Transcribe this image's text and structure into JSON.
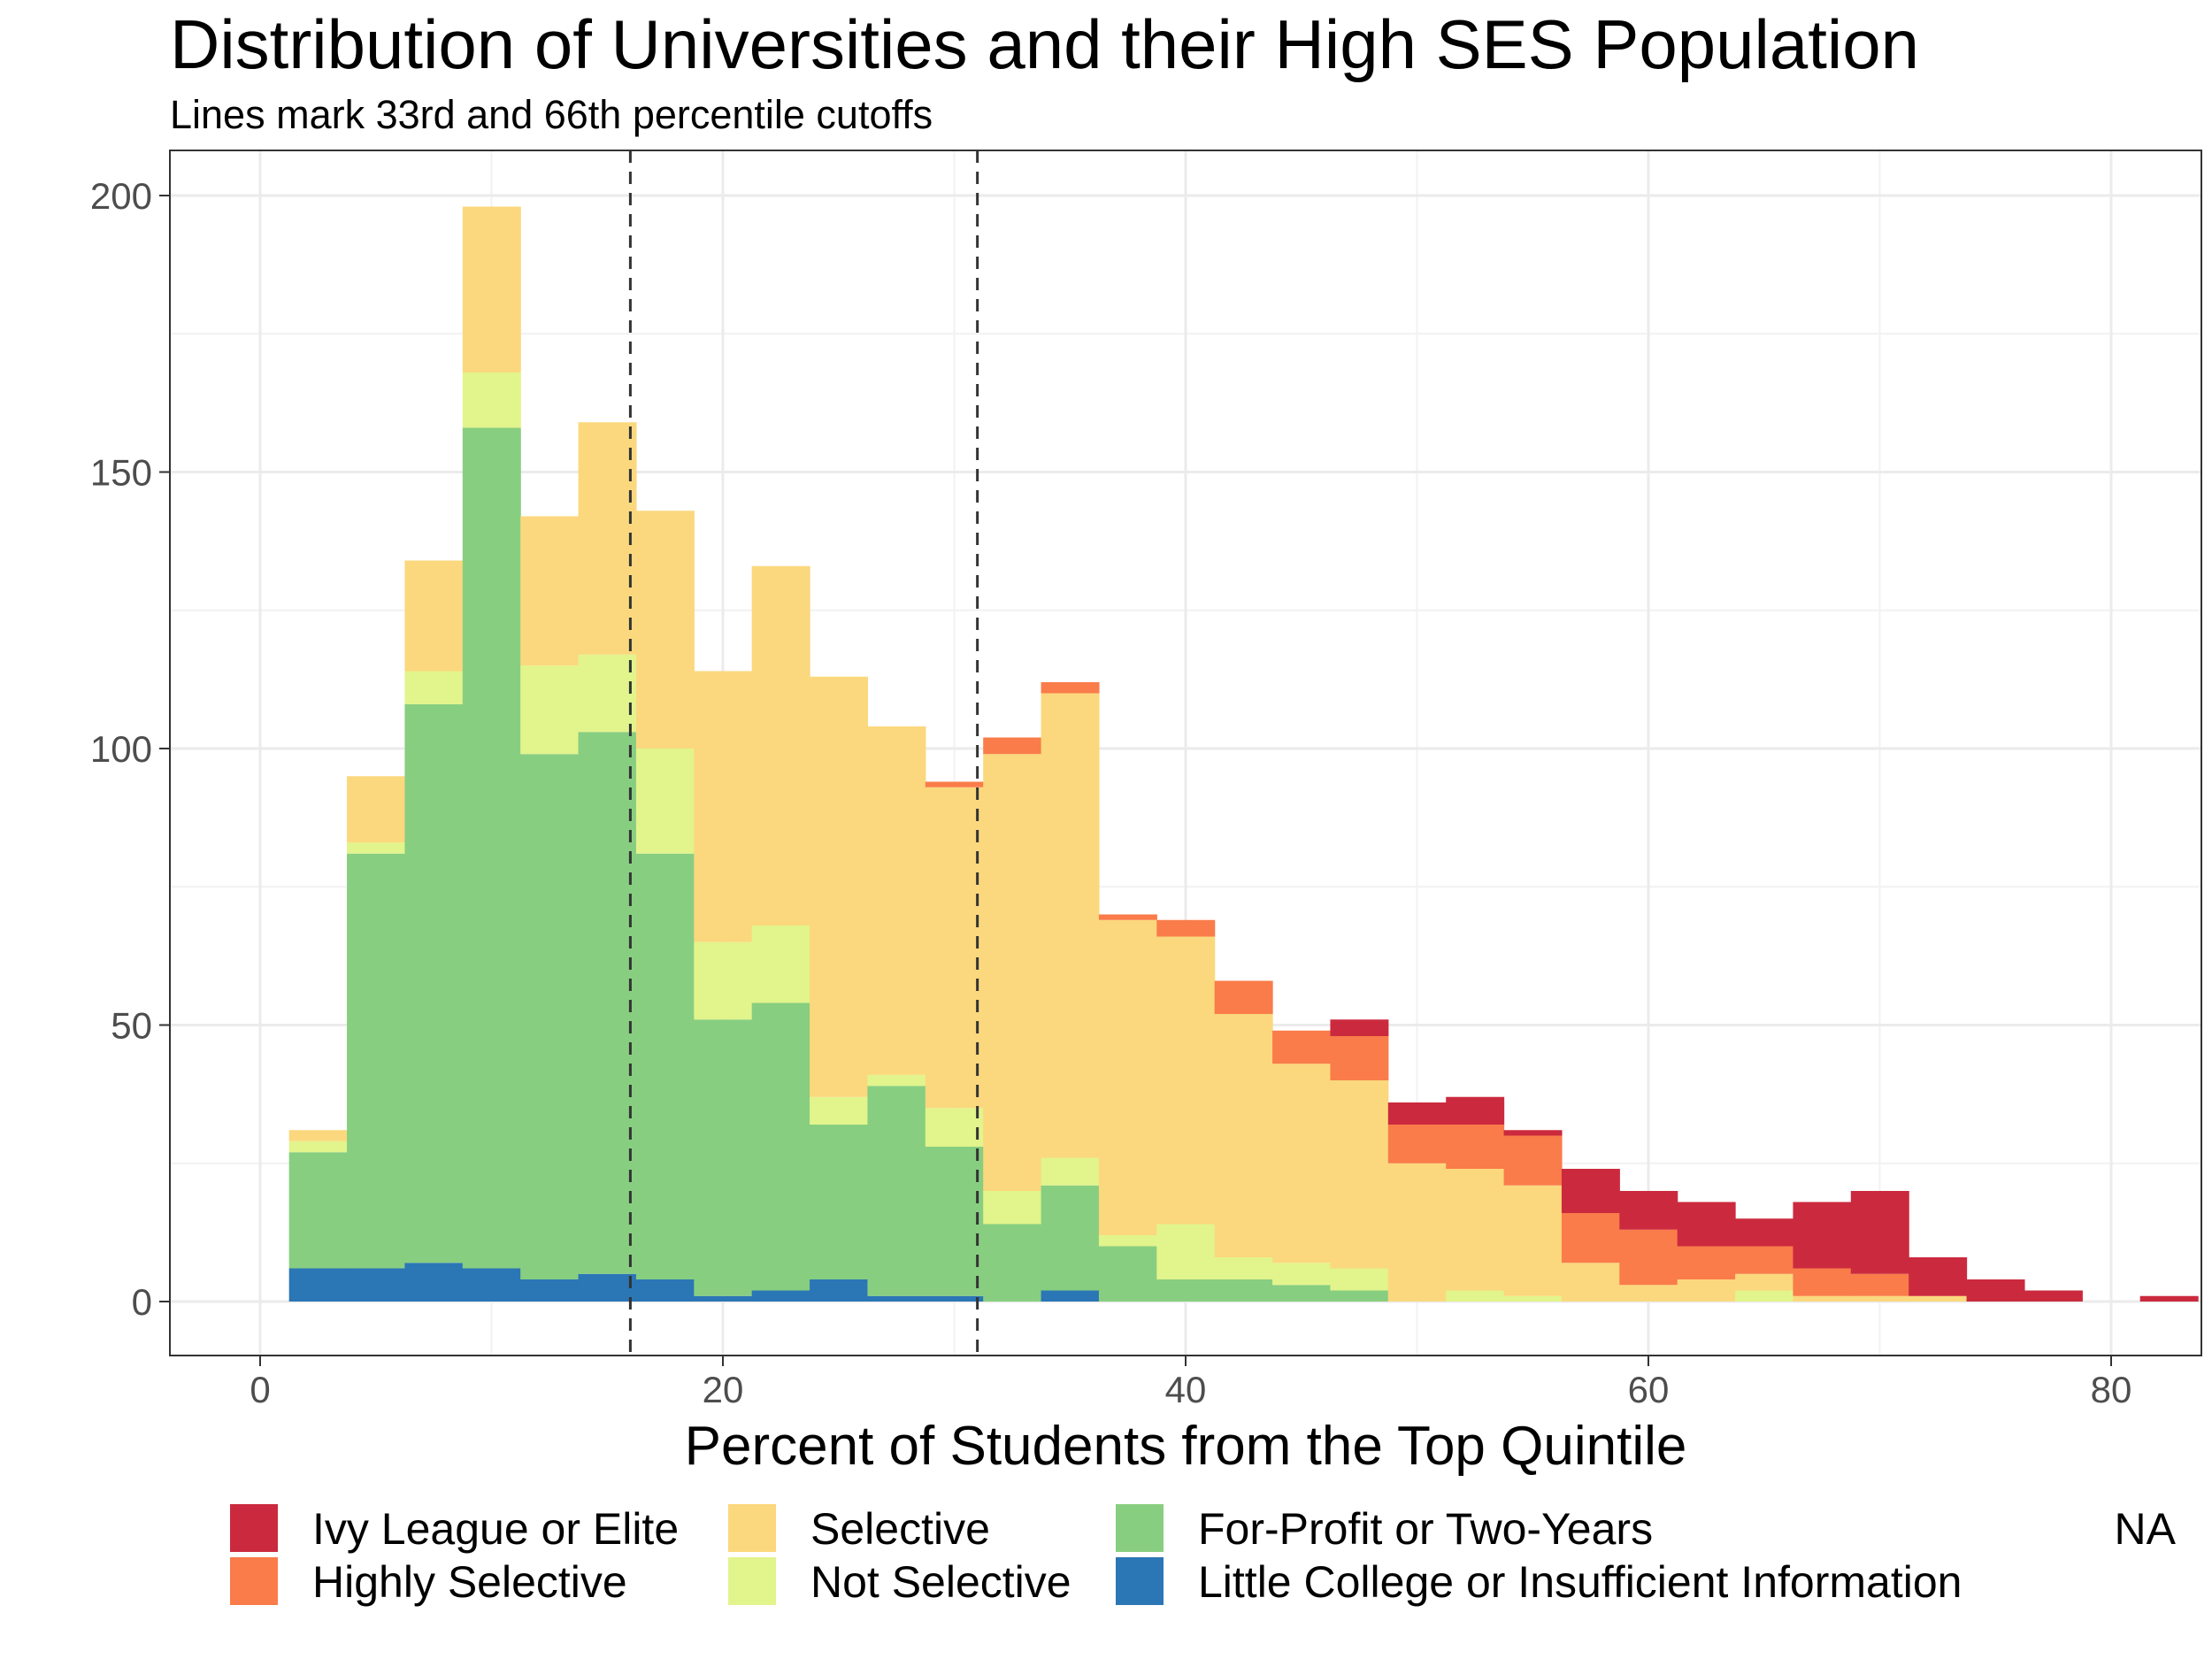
{
  "chart_data": {
    "type": "bar",
    "title": "Distribution of Universities and their High SES Population",
    "subtitle": "Lines mark 33rd and 66th percentile cutoffs",
    "xlabel": "Percent of Students from the Top Quintile",
    "ylabel": "",
    "xlim": [
      -5,
      105
    ],
    "ylim": [
      -10,
      210
    ],
    "x_ticks": [
      0,
      20,
      40,
      60,
      80,
      100
    ],
    "y_ticks": [
      0,
      50,
      100,
      150,
      200
    ],
    "grid": true,
    "stacked": true,
    "bin_width": 2.5,
    "bin_centers": [
      2.5,
      5,
      7.5,
      10,
      12.5,
      15,
      17.5,
      20,
      22.5,
      25,
      27.5,
      30,
      32.5,
      35,
      37.5,
      40,
      42.5,
      45,
      47.5,
      50,
      52.5,
      55,
      57.5,
      60,
      62.5,
      65,
      67.5,
      70,
      72.5,
      75,
      77.5,
      80,
      82.5
    ],
    "cutoffs": [
      16,
      31
    ],
    "series": [
      {
        "name": "Little College or Insufficient Information",
        "color": "#2B76B5",
        "values": [
          6,
          6,
          7,
          6,
          4,
          5,
          4,
          1,
          2,
          4,
          1,
          1,
          0,
          2,
          0,
          0,
          0,
          0,
          0,
          0,
          0,
          0,
          0,
          0,
          0,
          0,
          0,
          0,
          0,
          0,
          0,
          0,
          0
        ]
      },
      {
        "name": "For-Profit or Two-Years",
        "color": "#88CE80",
        "values": [
          21,
          75,
          101,
          152,
          95,
          98,
          77,
          50,
          52,
          28,
          38,
          27,
          14,
          19,
          10,
          4,
          4,
          3,
          2,
          0,
          0,
          0,
          0,
          0,
          0,
          0,
          0,
          0,
          0,
          0,
          0,
          0,
          0
        ]
      },
      {
        "name": "Not Selective",
        "color": "#E2F48C",
        "values": [
          2,
          2,
          6,
          10,
          16,
          14,
          19,
          14,
          14,
          5,
          2,
          7,
          6,
          5,
          2,
          10,
          4,
          4,
          4,
          0,
          2,
          1,
          0,
          0,
          0,
          2,
          0,
          0,
          0,
          0,
          0,
          0,
          0
        ]
      },
      {
        "name": "Selective",
        "color": "#FBD87D",
        "values": [
          2,
          12,
          20,
          30,
          27,
          42,
          43,
          49,
          65,
          76,
          63,
          58,
          79,
          84,
          57,
          52,
          44,
          36,
          34,
          25,
          22,
          20,
          7,
          3,
          4,
          3,
          1,
          1,
          1,
          0,
          0,
          0,
          0
        ]
      },
      {
        "name": "Highly Selective",
        "color": "#F97C4A",
        "values": [
          0,
          0,
          0,
          0,
          0,
          0,
          0,
          0,
          0,
          0,
          0,
          1,
          3,
          2,
          1,
          3,
          6,
          6,
          8,
          7,
          8,
          9,
          9,
          10,
          6,
          5,
          5,
          4,
          0,
          0,
          0,
          0,
          0
        ]
      },
      {
        "name": "Ivy League or Elite",
        "color": "#CB2A3E",
        "values": [
          0,
          0,
          0,
          0,
          0,
          0,
          0,
          0,
          0,
          0,
          0,
          0,
          0,
          0,
          0,
          0,
          0,
          0,
          3,
          4,
          5,
          1,
          8,
          7,
          8,
          5,
          12,
          15,
          7,
          4,
          2,
          0,
          1
        ]
      }
    ],
    "legend": {
      "position": "bottom",
      "na_label": "NA",
      "order": [
        "Ivy League or Elite",
        "Highly Selective",
        "Selective",
        "Not Selective",
        "For-Profit or Two-Years",
        "Little College or Insufficient Information"
      ]
    }
  }
}
